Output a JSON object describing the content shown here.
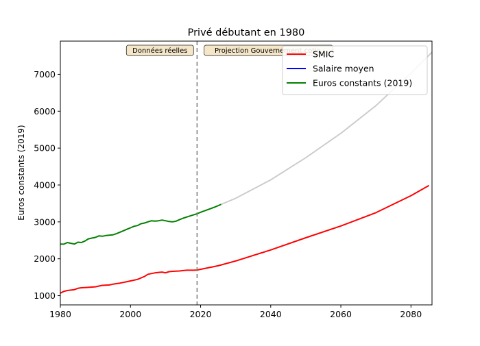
{
  "chart_data": {
    "type": "line",
    "title": "Privé débutant en 1980",
    "xlabel": "",
    "ylabel": "Euros constants (2019)",
    "xlim": [
      1980,
      2086
    ],
    "ylim": [
      750,
      7900
    ],
    "x_ticks": [
      1980,
      2000,
      2020,
      2040,
      2060,
      2080
    ],
    "y_ticks": [
      1000,
      2000,
      3000,
      4000,
      5000,
      6000,
      7000
    ],
    "grid": false,
    "legend_position": "top-right",
    "vertical_line": {
      "x": 2019,
      "style": "dashed",
      "color": "#808080"
    },
    "annotations": [
      {
        "text": "Données réelles",
        "x": 2018,
        "y": 7650,
        "align": "right"
      },
      {
        "text": "Projection Gouvernement cotis.",
        "x": 2021,
        "y": 7650,
        "align": "left"
      }
    ],
    "series": [
      {
        "name": "SMIC",
        "color": "#ff0000",
        "x": [
          1980,
          1981,
          1982,
          1984,
          1985,
          1986,
          1988,
          1990,
          1991,
          1992,
          1994,
          1995,
          1997,
          1999,
          2000,
          2002,
          2004,
          2005,
          2007,
          2008,
          2009,
          2010,
          2011,
          2012,
          2014,
          2016,
          2018,
          2019,
          2025,
          2030,
          2040,
          2050,
          2060,
          2070,
          2080,
          2085
        ],
        "y": [
          1070,
          1115,
          1140,
          1165,
          1200,
          1215,
          1225,
          1240,
          1260,
          1280,
          1290,
          1310,
          1340,
          1380,
          1400,
          1440,
          1520,
          1580,
          1620,
          1630,
          1640,
          1620,
          1650,
          1660,
          1670,
          1690,
          1690,
          1695,
          1810,
          1940,
          2240,
          2570,
          2890,
          3250,
          3710,
          3980
        ]
      },
      {
        "name": "Salaire moyen",
        "color": "#0000ff",
        "x": [],
        "y": []
      },
      {
        "name": "Euros constants (2019)",
        "color": "#008000",
        "x": [
          1980,
          1981,
          1982,
          1983,
          1984,
          1985,
          1986,
          1987,
          1988,
          1989,
          1990,
          1991,
          1992,
          1993,
          1994,
          1995,
          1996,
          1997,
          1998,
          1999,
          2000,
          2001,
          2002,
          2003,
          2004,
          2005,
          2006,
          2007,
          2008,
          2009,
          2010,
          2011,
          2012,
          2013,
          2014,
          2015,
          2016,
          2017,
          2018,
          2019,
          2020,
          2022,
          2024,
          2026
        ],
        "y": [
          2400,
          2395,
          2440,
          2420,
          2400,
          2450,
          2440,
          2480,
          2540,
          2560,
          2580,
          2620,
          2610,
          2630,
          2640,
          2650,
          2680,
          2720,
          2760,
          2800,
          2840,
          2880,
          2900,
          2950,
          2970,
          3000,
          3030,
          3020,
          3030,
          3050,
          3030,
          3010,
          3000,
          3020,
          3060,
          3100,
          3130,
          3160,
          3190,
          3220,
          3260,
          3330,
          3400,
          3480
        ]
      },
      {
        "name": "",
        "color": "#cccccc",
        "x": [
          2026,
          2030,
          2040,
          2050,
          2060,
          2070,
          2080,
          2086
        ],
        "y": [
          3480,
          3640,
          4140,
          4740,
          5400,
          6150,
          7030,
          7600
        ]
      }
    ]
  }
}
